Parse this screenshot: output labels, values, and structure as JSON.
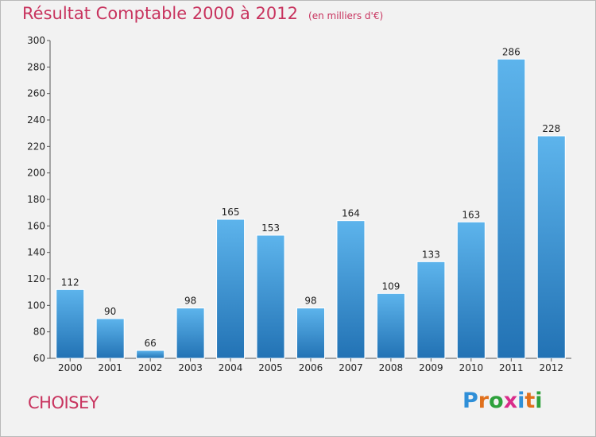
{
  "header": {
    "title": "Résultat Comptable 2000 à 2012",
    "subtitle": "(en milliers d'€)"
  },
  "footer": {
    "commune": "CHOISEY",
    "brand": "Proxiti",
    "brand_letters": [
      "P",
      "r",
      "o",
      "x",
      "i",
      "t",
      "i"
    ],
    "brand_colors": [
      "#2f8fd8",
      "#e0701c",
      "#2ea13c",
      "#d92c8a",
      "#2f8fd8",
      "#e0701c",
      "#2ea13c"
    ]
  },
  "colors": {
    "bar_top": "#5db4ec",
    "bar_bottom": "#2272b4",
    "text": "#222222",
    "accent": "#c8335e"
  },
  "chart_data": {
    "type": "bar",
    "title": "Résultat Comptable 2000 à 2012",
    "subtitle": "(en milliers d'€)",
    "xlabel": "",
    "ylabel": "",
    "categories": [
      "2000",
      "2001",
      "2002",
      "2003",
      "2004",
      "2005",
      "2006",
      "2007",
      "2008",
      "2009",
      "2010",
      "2011",
      "2012"
    ],
    "values": [
      112,
      90,
      66,
      98,
      165,
      153,
      98,
      164,
      109,
      133,
      163,
      286,
      228
    ],
    "ylim": [
      60,
      300
    ],
    "yticks": [
      60,
      80,
      100,
      120,
      140,
      160,
      180,
      200,
      220,
      240,
      260,
      280,
      300
    ],
    "grid": false,
    "legend": "none"
  }
}
